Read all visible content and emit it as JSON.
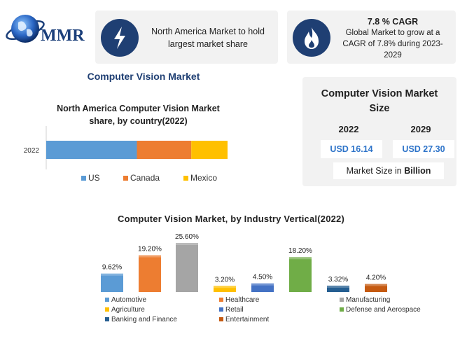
{
  "logo": {
    "text": "MMR"
  },
  "header": {
    "card1": {
      "text_line1": "North America Market to hold",
      "text_line2": "largest market share",
      "icon": "lightning-icon"
    },
    "card2": {
      "title": "7.8 % CAGR",
      "text_line1": "Global Market to grow at a",
      "text_line2": "CAGR of 7.8% during 2023-",
      "text_line3": "2029",
      "icon": "flame-icon"
    }
  },
  "main_title": "Computer Vision Market",
  "market_size": {
    "title_line1": "Computer Vision Market",
    "title_line2": "Size",
    "year1": "2022",
    "year2": "2029",
    "value1": "USD 16.14",
    "value2": "USD 27.30",
    "note_prefix": "Market Size in ",
    "note_bold": "Billion"
  },
  "colors": {
    "navy": "#1f3f73",
    "value_blue": "#2e74c9",
    "us": "#5b9bd5",
    "canada": "#ed7d31",
    "mexico": "#ffc000"
  },
  "chart_data": [
    {
      "type": "bar",
      "orientation": "horizontal-stacked",
      "title_line1": "North America Computer Vision Market",
      "title_line2": "share, by country(2022)",
      "categories": [
        "2022"
      ],
      "series": [
        {
          "name": "US",
          "values": [
            50
          ],
          "color": "#5b9bd5"
        },
        {
          "name": "Canada",
          "values": [
            30
          ],
          "color": "#ed7d31"
        },
        {
          "name": "Mexico",
          "values": [
            20
          ],
          "color": "#ffc000"
        }
      ],
      "xlim": [
        0,
        100
      ],
      "legend": "bottom"
    },
    {
      "type": "bar",
      "title": "Computer Vision Market, by Industry Vertical(2022)",
      "categories": [
        "Automotive",
        "Healthcare",
        "Manufacturing",
        "Agriculture",
        "Retail",
        "Defense and Aerospace",
        "Banking and Finance",
        "Entertainment"
      ],
      "values": [
        9.62,
        19.2,
        25.6,
        3.2,
        4.5,
        18.2,
        3.32,
        4.2
      ],
      "data_labels": [
        "9.62%",
        "19.20%",
        "25.60%",
        "3.20%",
        "4.50%",
        "18.20%",
        "3.32%",
        "4.20%"
      ],
      "colors": [
        "#5b9bd5",
        "#ed7d31",
        "#a5a5a5",
        "#ffc000",
        "#4472c4",
        "#70ad47",
        "#255e91",
        "#c55a11"
      ],
      "ylim": [
        0,
        25.6
      ],
      "legend": "bottom"
    }
  ]
}
